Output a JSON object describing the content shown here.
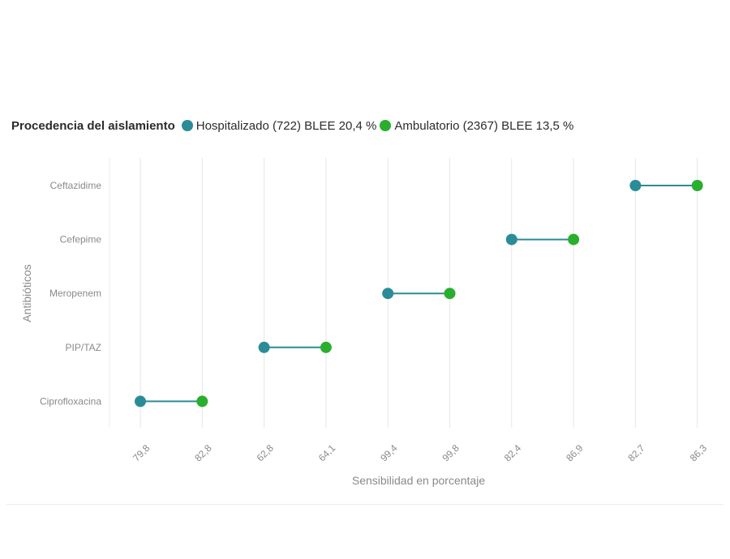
{
  "colors": {
    "hospitalizado": "#2a8c98",
    "ambulatorio": "#2aae2e",
    "grid": "#e6e6e6",
    "axis_text": "#8a8a8a",
    "line": "#2a8c98"
  },
  "legend": {
    "title": "Procedencia del aislamiento",
    "items": [
      "Hospitalizado (722) BLEE 20,4 %",
      "Ambulatorio (2367) BLEE 13,5 %"
    ]
  },
  "chart_data": {
    "type": "dumbbell",
    "xlabel": "Sensibilidad en porcentaje",
    "ylabel": "Antibióticos",
    "x_tick_labels": [
      "79,8",
      "82,8",
      "62,8",
      "64,1",
      "99,4",
      "99,8",
      "82,4",
      "86,9",
      "82,7",
      "86,3"
    ],
    "categories": [
      "Ceftazidime",
      "Cefepime",
      "Meropenem",
      "PIP/TAZ",
      "Ciprofloxacina"
    ],
    "series": [
      {
        "name": "Hospitalizado (722) BLEE 20,4 %",
        "values": [
          82.7,
          82.4,
          99.4,
          62.8,
          79.8
        ]
      },
      {
        "name": "Ambulatorio (2367) BLEE 13,5 %",
        "values": [
          86.3,
          86.9,
          99.8,
          64.1,
          82.8
        ]
      }
    ],
    "grid": true,
    "legend_position": "top-left"
  }
}
